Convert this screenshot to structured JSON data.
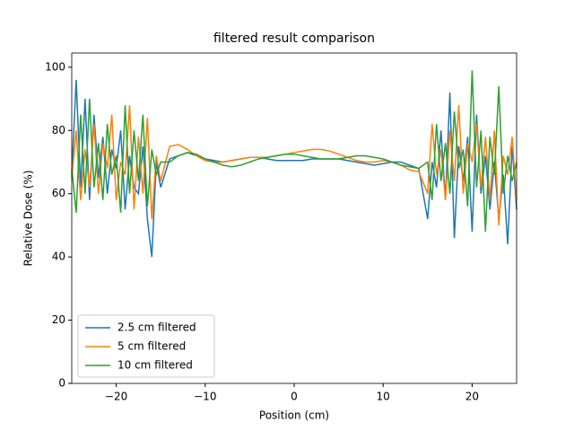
{
  "chart_data": {
    "type": "line",
    "title": "filtered result comparison",
    "xlabel": "Position (cm)",
    "ylabel": "Relative Dose (%)",
    "x": [
      -25,
      -24.5,
      -24,
      -23.5,
      -23,
      -22.5,
      -22,
      -21.5,
      -21,
      -20.5,
      -20,
      -19.5,
      -19,
      -18.5,
      -18,
      -17.5,
      -17,
      -16.5,
      -16,
      -15.5,
      -15,
      -14,
      -13,
      -12,
      -11,
      -10,
      -9,
      -8,
      -7,
      -6,
      -5,
      -4,
      -3,
      -2,
      -1,
      0,
      1,
      2,
      3,
      4,
      5,
      6,
      7,
      8,
      9,
      10,
      11,
      12,
      13,
      14,
      15,
      15.5,
      16,
      16.5,
      17,
      17.5,
      18,
      18.5,
      19,
      19.5,
      20,
      20.5,
      21,
      21.5,
      22,
      22.5,
      23,
      23.5,
      24,
      24.5,
      25
    ],
    "series": [
      {
        "name": "2.5 cm filtered",
        "color": "#1f77b4",
        "values": [
          66,
          96,
          62,
          90,
          58,
          85,
          65,
          78,
          60,
          74,
          68,
          80,
          55,
          72,
          62,
          60,
          75,
          52,
          40,
          70,
          62,
          71,
          72,
          73,
          72,
          71,
          70.5,
          70,
          70.5,
          71,
          71.5,
          71.5,
          71,
          70.5,
          70.5,
          70.5,
          70.5,
          71,
          71,
          71,
          71,
          70.5,
          70,
          69.5,
          69,
          69.5,
          70,
          70,
          69,
          68,
          52,
          70,
          62,
          80,
          58,
          92,
          46,
          75,
          64,
          78,
          48,
          85,
          60,
          72,
          55,
          70,
          52,
          66,
          44,
          75,
          55
        ]
      },
      {
        "name": "5 cm filtered",
        "color": "#ff7f0e",
        "values": [
          65,
          80,
          58,
          74,
          62,
          82,
          60,
          76,
          68,
          85,
          58,
          70,
          66,
          88,
          55,
          78,
          60,
          84,
          52,
          72,
          64,
          75,
          75.5,
          74,
          72,
          70.5,
          70,
          70,
          70.5,
          71,
          71.5,
          71.5,
          71.5,
          72,
          72.5,
          73,
          73.5,
          74,
          74,
          73.5,
          72.5,
          71.5,
          70.5,
          70,
          70,
          70.5,
          70,
          69,
          67.5,
          67,
          60,
          82,
          66,
          74,
          58,
          80,
          64,
          88,
          60,
          76,
          70,
          82,
          62,
          78,
          58,
          80,
          50,
          72,
          66,
          78,
          58
        ]
      },
      {
        "name": "10 cm filtered",
        "color": "#2ca02c",
        "values": [
          68,
          54,
          85,
          60,
          90,
          62,
          76,
          58,
          82,
          66,
          72,
          54,
          88,
          60,
          80,
          64,
          85,
          56,
          74,
          66,
          70,
          70,
          72,
          73,
          72.5,
          71,
          70,
          69,
          68.5,
          69,
          70,
          71,
          71.5,
          72,
          72.5,
          72.5,
          72,
          71.5,
          71,
          71,
          71,
          71.5,
          72,
          72,
          71.5,
          71,
          70,
          69,
          68.5,
          68,
          70,
          58,
          82,
          64,
          76,
          60,
          86,
          68,
          74,
          56,
          99,
          62,
          80,
          48,
          78,
          66,
          94,
          60,
          72,
          64,
          70
        ]
      }
    ],
    "xlim": [
      -25,
      25
    ],
    "ylim": [
      0,
      104.5
    ],
    "xticks": [
      {
        "value": -20,
        "label": "−20"
      },
      {
        "value": -10,
        "label": "−10"
      },
      0,
      10,
      20
    ],
    "yticks": [
      0,
      20,
      40,
      60,
      80,
      100
    ],
    "legend": "lower left"
  }
}
